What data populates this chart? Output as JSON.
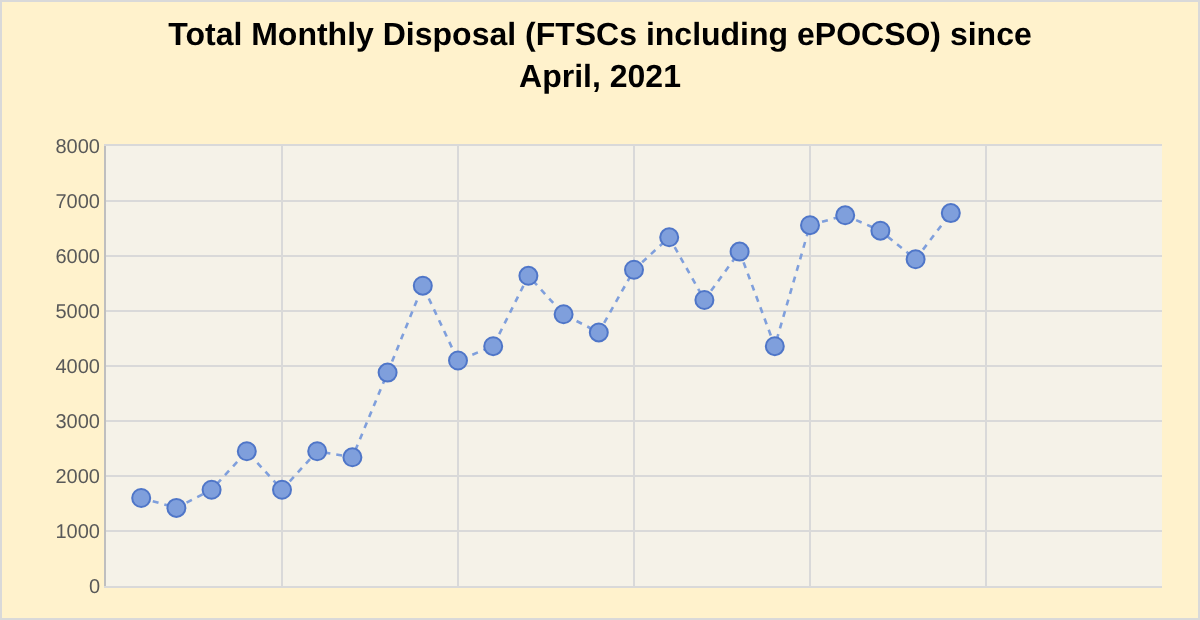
{
  "chart_data": {
    "type": "line",
    "title": "Total Monthly Disposal (FTSCs including ePOCSO) since April, 2021",
    "categories": [
      null,
      null,
      null,
      null,
      null,
      null,
      null,
      null,
      null,
      null,
      null,
      null,
      null,
      null,
      null,
      null,
      null,
      null,
      null,
      null,
      null,
      null,
      null,
      null
    ],
    "series": [
      {
        "color": "#7f9fdc",
        "values": [
          1600,
          1420,
          1750,
          2450,
          1750,
          2450,
          2340,
          3880,
          5460,
          4100,
          4360,
          5640,
          4940,
          4610,
          5750,
          6340,
          5200,
          6080,
          4360,
          6560,
          6740,
          6460,
          5940,
          6780
        ]
      }
    ],
    "ylim": [
      0,
      8000
    ],
    "yticks": [
      0,
      1000,
      2000,
      3000,
      4000,
      5000,
      6000,
      7000,
      8000
    ],
    "grid": true,
    "tick_labels": "y",
    "marker": "circle",
    "line_style": "dotted"
  }
}
